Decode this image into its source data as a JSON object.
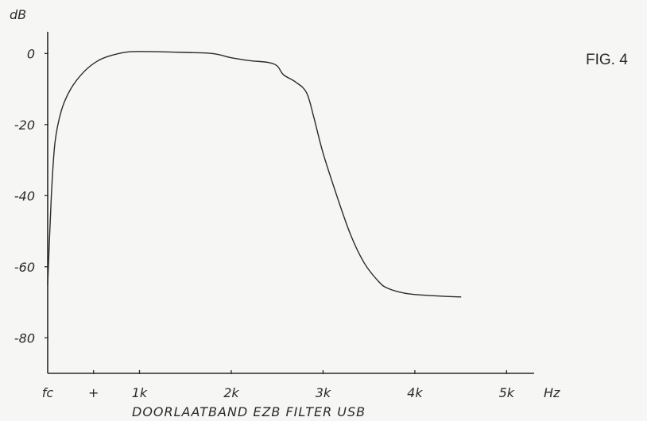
{
  "figure_label": "FIG. 4",
  "chart_data": {
    "type": "line",
    "title": "",
    "xlabel": "Hz",
    "ylabel": "dB",
    "caption": "DOORLAATBAND EZB FILTER USB",
    "grid": false,
    "xlim": [
      0,
      5300
    ],
    "ylim": [
      -90,
      5
    ],
    "x_ticks": [
      {
        "value": 0,
        "label": "fc"
      },
      {
        "value": 500,
        "label": "+"
      },
      {
        "value": 1000,
        "label": "1k"
      },
      {
        "value": 2000,
        "label": "2k"
      },
      {
        "value": 3000,
        "label": "3k"
      },
      {
        "value": 4000,
        "label": "4k"
      },
      {
        "value": 5000,
        "label": "5k"
      }
    ],
    "y_ticks": [
      {
        "value": 0,
        "label": "0"
      },
      {
        "value": -20,
        "label": "-20"
      },
      {
        "value": -40,
        "label": "-40"
      },
      {
        "value": -60,
        "label": "-60"
      },
      {
        "value": -80,
        "label": "-80"
      }
    ],
    "series": [
      {
        "color": "#2a2a2a",
        "points": [
          [
            0,
            -65
          ],
          [
            40,
            -40
          ],
          [
            80,
            -25
          ],
          [
            150,
            -16
          ],
          [
            250,
            -10
          ],
          [
            400,
            -5
          ],
          [
            550,
            -2
          ],
          [
            700,
            -0.5
          ],
          [
            900,
            0.5
          ],
          [
            1200,
            0.5
          ],
          [
            1500,
            0.3
          ],
          [
            1800,
            0
          ],
          [
            2000,
            -1.2
          ],
          [
            2200,
            -2
          ],
          [
            2400,
            -2.5
          ],
          [
            2500,
            -3.5
          ],
          [
            2570,
            -6
          ],
          [
            2700,
            -8
          ],
          [
            2820,
            -11
          ],
          [
            2900,
            -18
          ],
          [
            3000,
            -28
          ],
          [
            3150,
            -40
          ],
          [
            3300,
            -51
          ],
          [
            3450,
            -59
          ],
          [
            3600,
            -64
          ],
          [
            3700,
            -66
          ],
          [
            3900,
            -67.5
          ],
          [
            4100,
            -68
          ],
          [
            4300,
            -68.3
          ],
          [
            4500,
            -68.5
          ]
        ]
      }
    ]
  }
}
